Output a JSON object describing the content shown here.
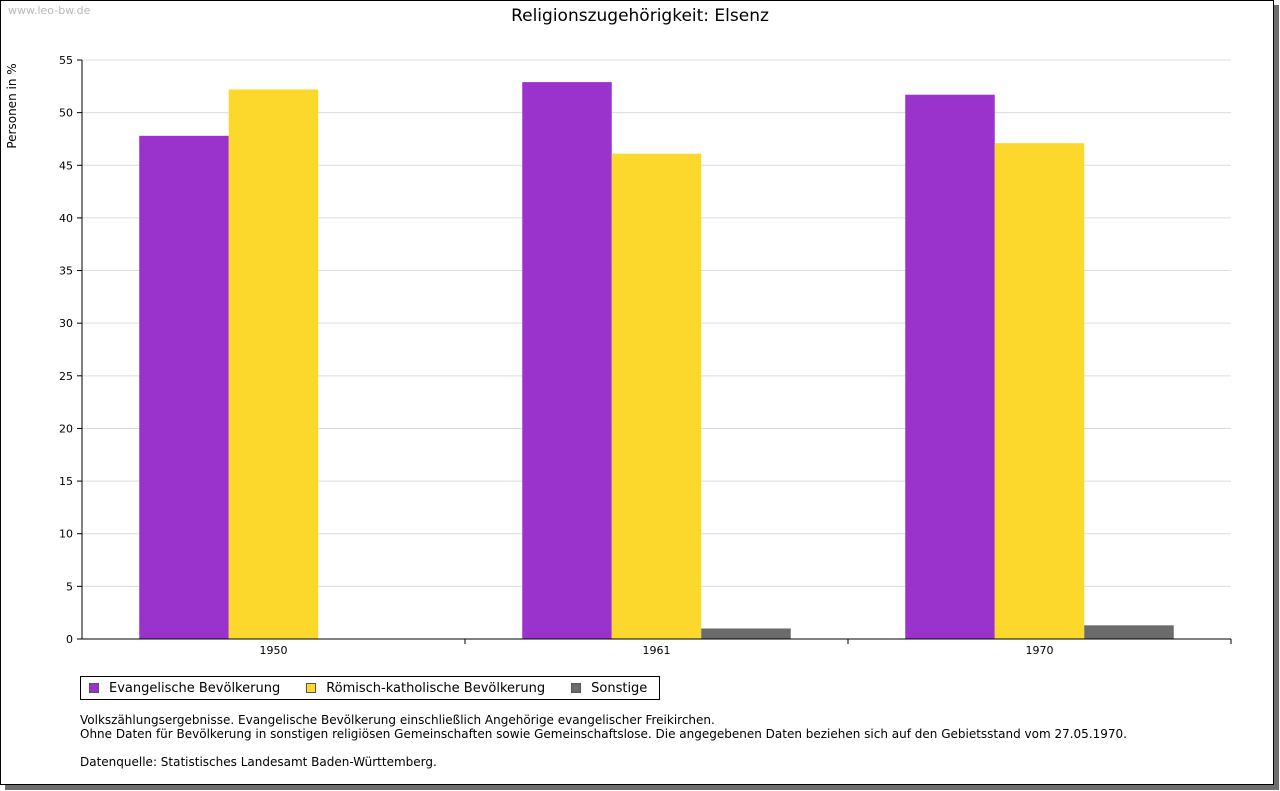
{
  "watermark": "www.leo-bw.de",
  "chart_data": {
    "type": "bar",
    "title": "Religionszugehörigkeit: Elsenz",
    "xlabel": "",
    "ylabel": "Personen in %",
    "ylim": [
      0,
      55
    ],
    "yticks": [
      0,
      5,
      10,
      15,
      20,
      25,
      30,
      35,
      40,
      45,
      50,
      55
    ],
    "grid": true,
    "categories": [
      "1950",
      "1961",
      "1970"
    ],
    "series": [
      {
        "name": "Evangelische Bevölkerung",
        "color": "#9933cc",
        "values": [
          47.8,
          52.9,
          51.7
        ]
      },
      {
        "name": "Römisch-katholische Bevölkerung",
        "color": "#fcd72c",
        "values": [
          52.2,
          46.1,
          47.1
        ]
      },
      {
        "name": "Sonstige",
        "color": "#6b6b6b",
        "values": [
          0.0,
          1.0,
          1.3
        ]
      }
    ],
    "legend_position": "bottom-left"
  },
  "notes": {
    "line1": "Volkszählungsergebnisse. Evangelische Bevölkerung einschließlich Angehörige evangelischer Freikirchen.",
    "line2": "Ohne Daten für Bevölkerung in sonstigen religiösen Gemeinschaften sowie Gemeinschaftslose. Die angegebenen Daten beziehen sich auf den Gebietsstand vom 27.05.1970.",
    "source": "Datenquelle: Statistisches Landesamt Baden-Württemberg."
  }
}
